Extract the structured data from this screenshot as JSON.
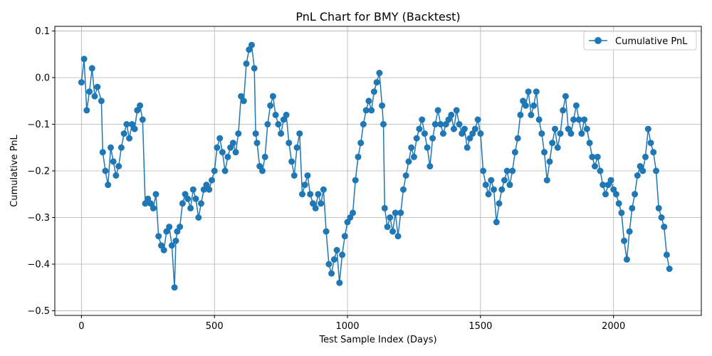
{
  "chart_data": {
    "type": "line",
    "title": "PnL Chart for BMY (Backtest)",
    "xlabel": "Test Sample Index (Days)",
    "ylabel": "Cumulative PnL",
    "xlim": [
      -100,
      2330
    ],
    "ylim": [
      -0.51,
      0.11
    ],
    "xticks": [
      0,
      500,
      1000,
      1500,
      2000
    ],
    "yticks": [
      -0.5,
      -0.4,
      -0.3,
      -0.2,
      -0.1,
      0.0,
      0.1
    ],
    "xtick_labels": [
      "0",
      "500",
      "1000",
      "1500",
      "2000"
    ],
    "ytick_labels": [
      "−0.5",
      "−0.4",
      "−0.3",
      "−0.2",
      "−0.1",
      "0.0",
      "0.1"
    ],
    "grid": true,
    "legend_position": "top-right",
    "color": "#1f77b4",
    "marker": "circle",
    "series": [
      {
        "name": "Cumulative PnL",
        "anchors": [
          [
            0,
            -0.01
          ],
          [
            10,
            0.04
          ],
          [
            20,
            -0.07
          ],
          [
            30,
            -0.03
          ],
          [
            40,
            0.02
          ],
          [
            50,
            -0.04
          ],
          [
            60,
            -0.02
          ],
          [
            75,
            -0.05
          ],
          [
            80,
            -0.16
          ],
          [
            90,
            -0.2
          ],
          [
            100,
            -0.23
          ],
          [
            110,
            -0.15
          ],
          [
            120,
            -0.18
          ],
          [
            130,
            -0.21
          ],
          [
            140,
            -0.19
          ],
          [
            150,
            -0.15
          ],
          [
            160,
            -0.12
          ],
          [
            170,
            -0.1
          ],
          [
            180,
            -0.13
          ],
          [
            190,
            -0.1
          ],
          [
            200,
            -0.11
          ],
          [
            210,
            -0.07
          ],
          [
            220,
            -0.06
          ],
          [
            230,
            -0.09
          ],
          [
            240,
            -0.27
          ],
          [
            250,
            -0.26
          ],
          [
            260,
            -0.27
          ],
          [
            270,
            -0.28
          ],
          [
            280,
            -0.25
          ],
          [
            290,
            -0.34
          ],
          [
            300,
            -0.36
          ],
          [
            310,
            -0.37
          ],
          [
            320,
            -0.33
          ],
          [
            330,
            -0.32
          ],
          [
            340,
            -0.36
          ],
          [
            350,
            -0.45
          ],
          [
            355,
            -0.35
          ],
          [
            360,
            -0.33
          ],
          [
            370,
            -0.32
          ],
          [
            380,
            -0.27
          ],
          [
            390,
            -0.25
          ],
          [
            400,
            -0.26
          ],
          [
            410,
            -0.28
          ],
          [
            420,
            -0.24
          ],
          [
            430,
            -0.26
          ],
          [
            440,
            -0.3
          ],
          [
            450,
            -0.27
          ],
          [
            460,
            -0.24
          ],
          [
            470,
            -0.23
          ],
          [
            480,
            -0.24
          ],
          [
            490,
            -0.22
          ],
          [
            500,
            -0.2
          ],
          [
            510,
            -0.15
          ],
          [
            520,
            -0.13
          ],
          [
            530,
            -0.16
          ],
          [
            540,
            -0.2
          ],
          [
            550,
            -0.17
          ],
          [
            560,
            -0.15
          ],
          [
            570,
            -0.14
          ],
          [
            580,
            -0.16
          ],
          [
            590,
            -0.12
          ],
          [
            600,
            -0.04
          ],
          [
            610,
            -0.05
          ],
          [
            620,
            0.03
          ],
          [
            630,
            0.06
          ],
          [
            640,
            0.07
          ],
          [
            650,
            0.02
          ],
          [
            655,
            -0.12
          ],
          [
            660,
            -0.14
          ],
          [
            670,
            -0.19
          ],
          [
            680,
            -0.2
          ],
          [
            690,
            -0.17
          ],
          [
            700,
            -0.1
          ],
          [
            710,
            -0.06
          ],
          [
            720,
            -0.04
          ],
          [
            730,
            -0.08
          ],
          [
            740,
            -0.1
          ],
          [
            750,
            -0.12
          ],
          [
            760,
            -0.09
          ],
          [
            770,
            -0.08
          ],
          [
            780,
            -0.14
          ],
          [
            790,
            -0.18
          ],
          [
            800,
            -0.21
          ],
          [
            810,
            -0.15
          ],
          [
            820,
            -0.12
          ],
          [
            830,
            -0.25
          ],
          [
            840,
            -0.23
          ],
          [
            850,
            -0.21
          ],
          [
            860,
            -0.25
          ],
          [
            870,
            -0.27
          ],
          [
            880,
            -0.28
          ],
          [
            890,
            -0.25
          ],
          [
            900,
            -0.27
          ],
          [
            910,
            -0.24
          ],
          [
            920,
            -0.33
          ],
          [
            930,
            -0.4
          ],
          [
            940,
            -0.42
          ],
          [
            950,
            -0.39
          ],
          [
            960,
            -0.37
          ],
          [
            970,
            -0.44
          ],
          [
            980,
            -0.38
          ],
          [
            990,
            -0.34
          ],
          [
            1000,
            -0.31
          ],
          [
            1010,
            -0.3
          ],
          [
            1020,
            -0.29
          ],
          [
            1030,
            -0.22
          ],
          [
            1040,
            -0.17
          ],
          [
            1050,
            -0.14
          ],
          [
            1060,
            -0.1
          ],
          [
            1070,
            -0.07
          ],
          [
            1080,
            -0.05
          ],
          [
            1090,
            -0.07
          ],
          [
            1100,
            -0.03
          ],
          [
            1110,
            -0.01
          ],
          [
            1120,
            0.01
          ],
          [
            1130,
            -0.06
          ],
          [
            1135,
            -0.1
          ],
          [
            1140,
            -0.28
          ],
          [
            1150,
            -0.32
          ],
          [
            1160,
            -0.3
          ],
          [
            1170,
            -0.33
          ],
          [
            1180,
            -0.29
          ],
          [
            1190,
            -0.34
          ],
          [
            1200,
            -0.29
          ],
          [
            1210,
            -0.24
          ],
          [
            1220,
            -0.21
          ],
          [
            1230,
            -0.18
          ],
          [
            1240,
            -0.15
          ],
          [
            1250,
            -0.17
          ],
          [
            1260,
            -0.13
          ],
          [
            1270,
            -0.11
          ],
          [
            1280,
            -0.09
          ],
          [
            1290,
            -0.12
          ],
          [
            1300,
            -0.15
          ],
          [
            1310,
            -0.19
          ],
          [
            1320,
            -0.13
          ],
          [
            1330,
            -0.1
          ],
          [
            1340,
            -0.07
          ],
          [
            1350,
            -0.1
          ],
          [
            1360,
            -0.12
          ],
          [
            1370,
            -0.1
          ],
          [
            1380,
            -0.09
          ],
          [
            1390,
            -0.08
          ],
          [
            1400,
            -0.11
          ],
          [
            1410,
            -0.07
          ],
          [
            1420,
            -0.1
          ],
          [
            1430,
            -0.12
          ],
          [
            1440,
            -0.11
          ],
          [
            1450,
            -0.15
          ],
          [
            1460,
            -0.13
          ],
          [
            1470,
            -0.12
          ],
          [
            1480,
            -0.11
          ],
          [
            1490,
            -0.09
          ],
          [
            1500,
            -0.12
          ],
          [
            1510,
            -0.2
          ],
          [
            1520,
            -0.23
          ],
          [
            1530,
            -0.25
          ],
          [
            1540,
            -0.22
          ],
          [
            1550,
            -0.24
          ],
          [
            1560,
            -0.31
          ],
          [
            1570,
            -0.27
          ],
          [
            1580,
            -0.24
          ],
          [
            1590,
            -0.22
          ],
          [
            1600,
            -0.2
          ],
          [
            1610,
            -0.23
          ],
          [
            1620,
            -0.2
          ],
          [
            1630,
            -0.16
          ],
          [
            1640,
            -0.13
          ],
          [
            1650,
            -0.08
          ],
          [
            1660,
            -0.05
          ],
          [
            1670,
            -0.06
          ],
          [
            1680,
            -0.03
          ],
          [
            1690,
            -0.08
          ],
          [
            1700,
            -0.06
          ],
          [
            1710,
            -0.03
          ],
          [
            1720,
            -0.09
          ],
          [
            1730,
            -0.12
          ],
          [
            1740,
            -0.16
          ],
          [
            1750,
            -0.22
          ],
          [
            1760,
            -0.18
          ],
          [
            1770,
            -0.14
          ],
          [
            1780,
            -0.11
          ],
          [
            1790,
            -0.15
          ],
          [
            1800,
            -0.12
          ],
          [
            1810,
            -0.07
          ],
          [
            1820,
            -0.04
          ],
          [
            1830,
            -0.11
          ],
          [
            1840,
            -0.12
          ],
          [
            1850,
            -0.09
          ],
          [
            1860,
            -0.06
          ],
          [
            1870,
            -0.09
          ],
          [
            1880,
            -0.12
          ],
          [
            1890,
            -0.09
          ],
          [
            1900,
            -0.11
          ],
          [
            1910,
            -0.14
          ],
          [
            1920,
            -0.17
          ],
          [
            1930,
            -0.19
          ],
          [
            1940,
            -0.17
          ],
          [
            1950,
            -0.2
          ],
          [
            1960,
            -0.23
          ],
          [
            1970,
            -0.25
          ],
          [
            1980,
            -0.23
          ],
          [
            1990,
            -0.22
          ],
          [
            2000,
            -0.24
          ],
          [
            2010,
            -0.25
          ],
          [
            2020,
            -0.27
          ],
          [
            2030,
            -0.29
          ],
          [
            2040,
            -0.35
          ],
          [
            2050,
            -0.39
          ],
          [
            2060,
            -0.33
          ],
          [
            2070,
            -0.28
          ],
          [
            2080,
            -0.25
          ],
          [
            2090,
            -0.21
          ],
          [
            2100,
            -0.19
          ],
          [
            2110,
            -0.2
          ],
          [
            2120,
            -0.17
          ],
          [
            2130,
            -0.11
          ],
          [
            2140,
            -0.14
          ],
          [
            2150,
            -0.16
          ],
          [
            2160,
            -0.2
          ],
          [
            2170,
            -0.28
          ],
          [
            2180,
            -0.3
          ],
          [
            2190,
            -0.32
          ],
          [
            2200,
            -0.38
          ],
          [
            2210,
            -0.41
          ]
        ]
      }
    ]
  }
}
